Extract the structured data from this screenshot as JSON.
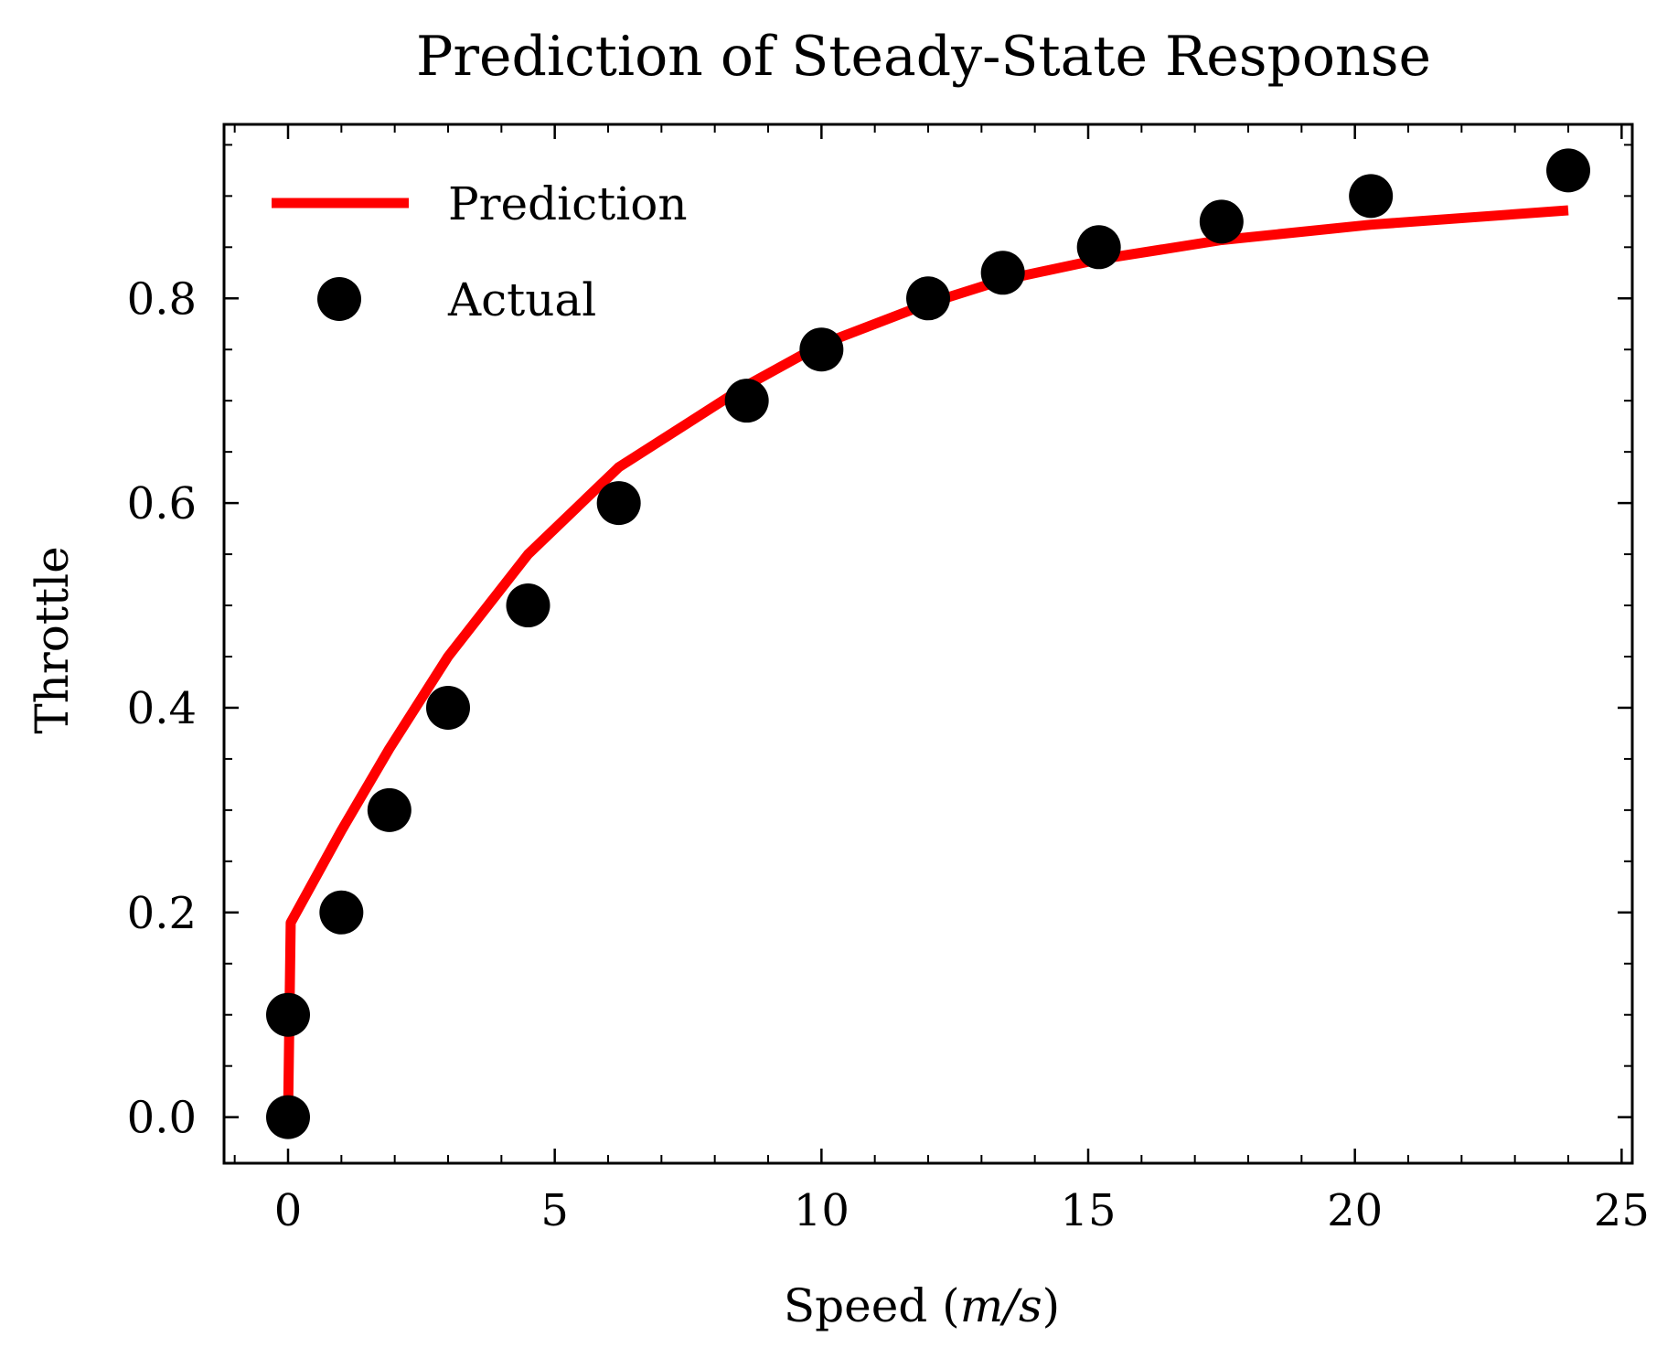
{
  "chart_data": {
    "type": "line",
    "title": "Prediction of Steady-State Response",
    "xlabel_main": "Speed (",
    "xlabel_var": "m/s",
    "xlabel_end": ")",
    "ylabel": "Throttle",
    "xlim": [
      -1.2,
      25.2
    ],
    "ylim": [
      -0.045,
      0.97
    ],
    "xticks": [
      0,
      5,
      10,
      15,
      20,
      25
    ],
    "xtick_labels": [
      "0",
      "5",
      "10",
      "15",
      "20",
      "25"
    ],
    "yticks": [
      0.0,
      0.2,
      0.4,
      0.6,
      0.8
    ],
    "ytick_labels": [
      "0.0",
      "0.2",
      "0.4",
      "0.6",
      "0.8"
    ],
    "legend": {
      "position": "top-left",
      "prediction_label": "Prediction",
      "actual_label": "Actual"
    },
    "colors": {
      "prediction": "#ff0000",
      "actual": "#000000"
    },
    "series": [
      {
        "name": "Prediction",
        "kind": "line",
        "x": [
          0.0,
          0.05,
          1.0,
          1.9,
          3.0,
          4.5,
          6.2,
          8.6,
          10.0,
          12.0,
          13.4,
          15.2,
          17.5,
          20.3,
          24.0
        ],
        "y": [
          0.0,
          0.19,
          0.28,
          0.36,
          0.45,
          0.55,
          0.635,
          0.715,
          0.755,
          0.795,
          0.818,
          0.838,
          0.857,
          0.872,
          0.886
        ]
      },
      {
        "name": "Actual",
        "kind": "scatter",
        "x": [
          0.0,
          0.0,
          1.0,
          1.9,
          3.0,
          4.5,
          6.2,
          8.6,
          10.0,
          12.0,
          13.4,
          15.2,
          17.5,
          20.3,
          24.0
        ],
        "y": [
          0.0,
          0.1,
          0.2,
          0.3,
          0.4,
          0.5,
          0.6,
          0.7,
          0.75,
          0.8,
          0.825,
          0.85,
          0.875,
          0.9,
          0.925
        ]
      }
    ]
  }
}
